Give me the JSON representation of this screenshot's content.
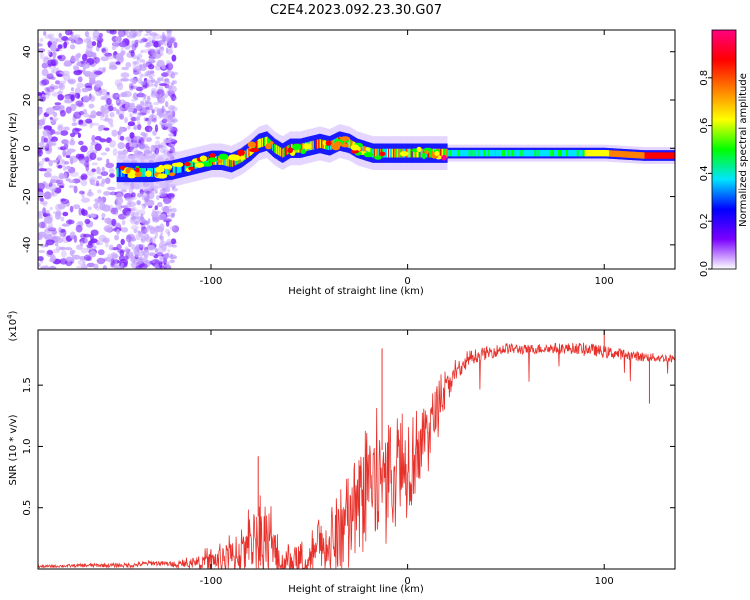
{
  "title": "C2E4.2023.092.23.30.G07",
  "chart_data": [
    {
      "type": "heatmap",
      "name": "spectrogram",
      "xlabel": "Height of straight line (km)",
      "ylabel": "Frequency (Hz)",
      "xlim": [
        -188,
        136
      ],
      "ylim": [
        -50,
        49
      ],
      "x_ticks": [
        -100,
        0,
        100
      ],
      "x_tick_labels": [
        "-100",
        "0",
        "100"
      ],
      "y_ticks": [
        -40,
        -20,
        0,
        20,
        40
      ],
      "y_tick_labels": [
        "-40",
        "-20",
        "0",
        "20",
        "40"
      ],
      "ridge": {
        "x": [
          -148,
          -140,
          -130,
          -120,
          -110,
          -100,
          -95,
          -90,
          -85,
          -80,
          -76,
          -72,
          -68,
          -64,
          -60,
          -55,
          -50,
          -45,
          -40,
          -35,
          -30,
          -26,
          -22,
          -18,
          -10,
          0,
          10,
          20,
          40,
          60,
          80,
          100,
          120,
          136
        ],
        "y": [
          -10,
          -10,
          -10,
          -9,
          -7,
          -5,
          -5,
          -6,
          -4,
          -1,
          2,
          3,
          0,
          -2,
          0,
          0,
          1,
          2,
          1,
          3,
          2,
          0,
          -1,
          -2,
          -2,
          -2,
          -2,
          -2,
          -2,
          -2,
          -2,
          -2,
          -3,
          -3
        ]
      },
      "colorbar": {
        "label": "Normalized spectral amplitude",
        "min": 0,
        "max": 1,
        "ticks": [
          0.0,
          0.2,
          0.4,
          0.6,
          0.8
        ],
        "tick_labels": [
          "0.0",
          "0.2",
          "0.4",
          "0.6",
          "0.8"
        ],
        "colors": [
          "#ffffff",
          "#7a00ff",
          "#0000ff",
          "#00e5ff",
          "#00ff00",
          "#ffff00",
          "#ff8000",
          "#ff0000",
          "#ff0080"
        ]
      }
    },
    {
      "type": "line",
      "name": "snr",
      "xlabel": "Height of straight line (km)",
      "ylabel": "SNR (10 * v/v)",
      "scale_label": "(x10",
      "scale_exponent": "4",
      "scale_close": ")",
      "xlim": [
        -188,
        136
      ],
      "ylim": [
        0,
        1.95
      ],
      "x_ticks": [
        -100,
        0,
        100
      ],
      "x_tick_labels": [
        "-100",
        "0",
        "100"
      ],
      "y_ticks": [
        0.5,
        1.0,
        1.5
      ],
      "y_tick_labels": [
        "0.5",
        "1.0",
        "1.5"
      ],
      "color": "#e8302a",
      "envelope": {
        "x": [
          -188,
          -160,
          -140,
          -130,
          -120,
          -110,
          -100,
          -90,
          -85,
          -80,
          -75,
          -72,
          -68,
          -64,
          -60,
          -55,
          -50,
          -45,
          -40,
          -35,
          -30,
          -25,
          -20,
          -15,
          -10,
          -5,
          0,
          5,
          10,
          15,
          20,
          25,
          30,
          40,
          50,
          60,
          70,
          80,
          90,
          100,
          110,
          120,
          130,
          136
        ],
        "y": [
          0.02,
          0.03,
          0.03,
          0.05,
          0.04,
          0.07,
          0.12,
          0.18,
          0.25,
          0.35,
          0.45,
          0.4,
          0.35,
          0.15,
          0.12,
          0.1,
          0.12,
          0.25,
          0.35,
          0.45,
          0.6,
          0.75,
          0.9,
          0.95,
          1.0,
          1.05,
          1.1,
          1.15,
          1.25,
          1.4,
          1.55,
          1.65,
          1.72,
          1.76,
          1.8,
          1.79,
          1.8,
          1.8,
          1.8,
          1.77,
          1.75,
          1.73,
          1.72,
          1.72
        ]
      },
      "noise": {
        "x": [
          -188,
          -130,
          -120,
          -110,
          -100,
          -90,
          -80,
          -75,
          -70,
          -60,
          -50,
          -40,
          -30,
          -20,
          -10,
          0,
          10,
          20,
          30,
          60,
          100,
          136
        ],
        "y": [
          0.01,
          0.02,
          0.02,
          0.04,
          0.08,
          0.15,
          0.25,
          0.35,
          0.3,
          0.12,
          0.2,
          0.3,
          0.35,
          0.45,
          0.45,
          0.35,
          0.25,
          0.12,
          0.06,
          0.04,
          0.05,
          0.03
        ]
      },
      "spikes": [
        {
          "x": -76,
          "y": 0.92
        },
        {
          "x": -13,
          "y": 1.8
        },
        {
          "x": 100,
          "y": 1.96
        },
        {
          "x": 123,
          "y": 1.35
        }
      ]
    }
  ]
}
